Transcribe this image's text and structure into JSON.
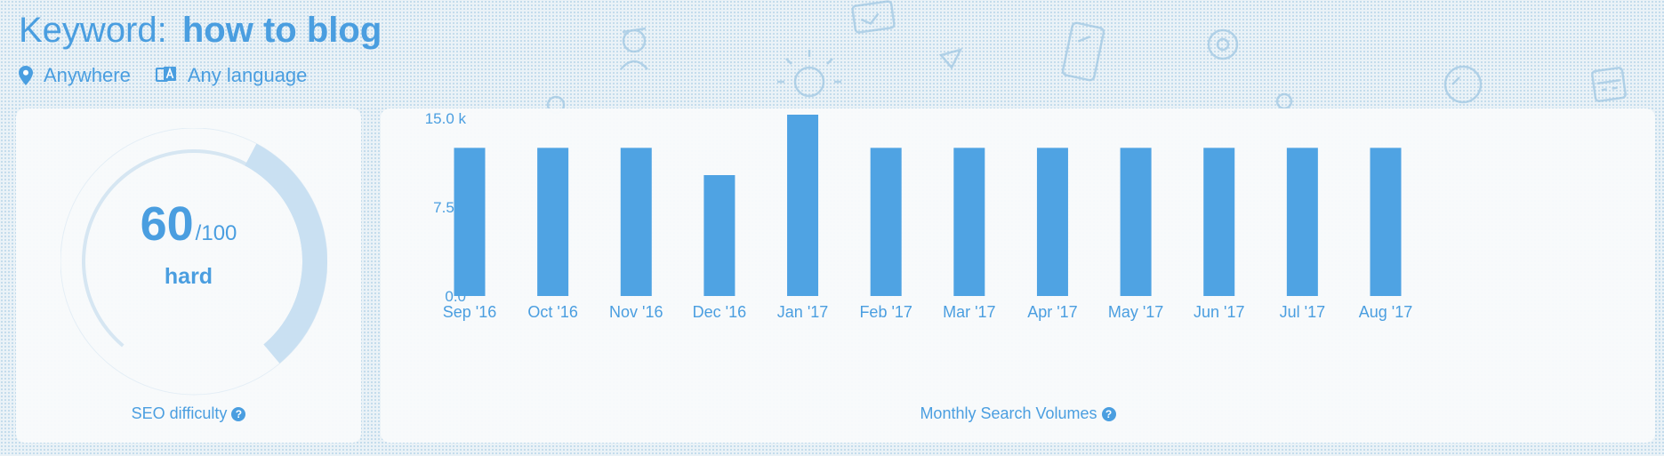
{
  "header": {
    "keyword_label": "Keyword:",
    "keyword_value": "how to blog",
    "location": "Anywhere",
    "language": "Any language"
  },
  "seo_difficulty": {
    "score": "60",
    "max": "/100",
    "level": "hard",
    "label": "SEO difficulty",
    "help": "?"
  },
  "volume_card": {
    "label": "Monthly Search Volumes",
    "help": "?"
  },
  "colors": {
    "accent": "#4a9ee0",
    "bar": "#4fa3e3",
    "gauge_fill": "#c9e0f2",
    "gauge_track": "#d6e6f2"
  },
  "chart_data": {
    "type": "bar",
    "categories": [
      "Sep '16",
      "Oct '16",
      "Nov '16",
      "Dec '16",
      "Jan '17",
      "Feb '17",
      "Mar '17",
      "Apr '17",
      "May '17",
      "Jun '17",
      "Jul '17",
      "Aug '17"
    ],
    "values": [
      12500,
      12500,
      12500,
      10200,
      15300,
      12500,
      12500,
      12500,
      12500,
      12500,
      12500,
      12500
    ],
    "y_ticks": [
      {
        "value": 0,
        "label": "0.0"
      },
      {
        "value": 7500,
        "label": "7.5 k"
      },
      {
        "value": 15000,
        "label": "15.0 k"
      }
    ],
    "ylim": [
      0,
      15000
    ],
    "grid": false,
    "xlabel": "Monthly Search Volumes",
    "ylabel": ""
  }
}
